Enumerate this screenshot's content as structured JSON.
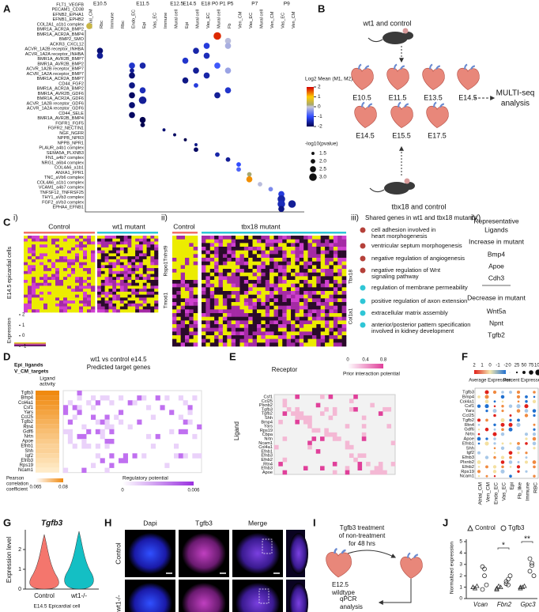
{
  "panel_a": {
    "label": "A",
    "groups": [
      "E10.5",
      "E11.5",
      "E12.5",
      "E14.5",
      "E18 P0 P1 P5",
      "P7",
      "P9"
    ],
    "columns": [
      "Atrial_CM",
      "Rbc",
      "Immune",
      "Rbc",
      "Endo_EC",
      "Epi",
      "Vas_EC",
      "Immune",
      "Mural cell",
      "Epi",
      "Mural cell",
      "Vas_EC",
      "Mural cell",
      "Fb",
      "Ven_CM",
      "Vas_EC",
      "Mural cell",
      "Ven_CM",
      "Vas_EC",
      "Ven_CM"
    ],
    "rows": [
      "FLT1_VEGFB",
      "PECAM1_CD38",
      "EFNB2_EPHA1",
      "EFNB1_EPHB2",
      "COL2A1_a1b1 complex",
      "BMR1A_ACR2A_BMP2",
      "BMR1A_ACR2A_BMP4",
      "BMP2_SMO",
      "ACKR3_CXCL12",
      "ACVR_1A2B receptor_INHBA",
      "ACVR_1A2A receptor_INHBA",
      "BMR1A_AVR2B_BMP7",
      "BMR1A_AVR2B_BMP2",
      "ACVR_1A2B receptor_BMP7",
      "ACVR_1A2A receptor_BMP7",
      "BMR1A_ACR2A_BMP7",
      "CD44_FGF2",
      "BMR1A_ACR2A_BMP2",
      "BMR1A_AVR2B_GDF6",
      "BMR1A_ACR2A_GDF6",
      "ACVR_1A2B receptor_GDF6",
      "ACVR_1A2A receptor_GDF6",
      "CD44_SELE",
      "BMR1A_AVR2B_BMP4",
      "FGFR1_FGF5",
      "FGFR2_NECTIN1",
      "NGF_NGFR",
      "NPPB_NPR3",
      "NPPB_NPR1",
      "PLAUR_a4b1 complex",
      "SEMA5A_PLXNB3",
      "FN1_a4b7 complex",
      "NRG1_a6b4 complex",
      "COL4A6_a1b1",
      "ANXA1_FPR1",
      "TNC_aVb6 complex",
      "COL4A6_a1b1 complex",
      "VCAM1_a4b7 complex",
      "TNFSF12_TNFRSF25",
      "THY1_aVb3 complex",
      "FGF2_aVb3 complex",
      "EPHA4_EFNB1"
    ],
    "dots": [
      [
        4,
        0,
        0.5,
        2.5
      ],
      [
        9,
        1,
        -1.8,
        2.5
      ],
      [
        10,
        1,
        -1.6,
        2.5
      ],
      [
        12,
        4,
        -1.3,
        2.5
      ],
      [
        12,
        5,
        -1.5,
        2.5
      ],
      [
        13,
        4,
        -1.6,
        2
      ],
      [
        14,
        4,
        -1.8,
        2.5
      ],
      [
        16,
        4,
        -1.7,
        2.5
      ],
      [
        17,
        5,
        -1.4,
        2.5
      ],
      [
        18,
        4,
        -1.9,
        2.5
      ],
      [
        19,
        5,
        -1.6,
        3
      ],
      [
        20,
        4,
        -1.8,
        2.5
      ],
      [
        22,
        4,
        -1.9,
        2.5
      ],
      [
        23,
        5,
        -2,
        2.5
      ],
      [
        24,
        5,
        -2,
        2
      ],
      [
        6,
        12,
        1.8,
        3
      ],
      [
        7,
        13,
        -0.1,
        2.5
      ],
      [
        8,
        11,
        -1.2,
        2.5
      ],
      [
        8,
        13,
        -0.2,
        2.5
      ],
      [
        9,
        10,
        -1.5,
        2.5
      ],
      [
        10,
        11,
        -1.4,
        2.5
      ],
      [
        11,
        9,
        -1.3,
        2.5
      ],
      [
        12,
        12,
        -0.9,
        2.5
      ],
      [
        13,
        10,
        -1.6,
        2.5
      ],
      [
        13,
        13,
        -0.3,
        2.5
      ],
      [
        14,
        11,
        -1.5,
        2.5
      ],
      [
        15,
        9,
        -1.7,
        2.5
      ],
      [
        16,
        10,
        -1.2,
        2
      ],
      [
        17,
        13,
        -1.3,
        2.5
      ],
      [
        18,
        12,
        -1.6,
        2.5
      ],
      [
        25,
        7,
        -1.8,
        1.5
      ],
      [
        26,
        8,
        -1.9,
        1.5
      ],
      [
        27,
        9,
        -2,
        1.5
      ],
      [
        28,
        10,
        -1.7,
        1.5
      ],
      [
        29,
        10,
        -1.9,
        2
      ],
      [
        30,
        12,
        -1.5,
        2
      ],
      [
        31,
        13,
        -1.6,
        2
      ],
      [
        32,
        14,
        -1,
        2
      ],
      [
        33,
        14,
        -0.8,
        2
      ],
      [
        34,
        15,
        0.2,
        2
      ],
      [
        35,
        15,
        1.3,
        2.5
      ],
      [
        36,
        16,
        -0.1,
        2
      ],
      [
        37,
        17,
        -0.5,
        2
      ],
      [
        38,
        18,
        -1.2,
        2.5
      ],
      [
        39,
        18,
        -1.5,
        3
      ],
      [
        40,
        18,
        -1.4,
        3
      ],
      [
        40,
        19,
        -1.6,
        3
      ],
      [
        41,
        18,
        -1.7,
        2.5
      ]
    ],
    "color_title": "Log2 Mean (M1, M2)",
    "color_ticks": [
      2,
      1,
      0,
      -1,
      -2
    ],
    "size_title": "-log10(pvalue)",
    "size_ticks": [
      1.5,
      {
        "value": 2,
        "label": "2.0"
      },
      2.5,
      {
        "value": 3,
        "label": "3.0"
      }
    ]
  },
  "panel_b": {
    "label": "B",
    "top_label": "wt1 and control",
    "bottom_label": "tbx18 and control",
    "row1": [
      "E10.5",
      "E11.5",
      "E13.5",
      "E14.5"
    ],
    "row2": [
      "E14.5",
      "E15.5",
      "E17.5"
    ],
    "analysis": [
      "MULTI-seq",
      "analysis"
    ]
  },
  "panel_c": {
    "label": "C",
    "i": {
      "label": "i)",
      "groups": [
        "Control",
        "wt1 mutant"
      ],
      "y_label": "E14.5 epicardial cells",
      "legend_title": "Expression",
      "legend_ticks": [
        -1,
        0,
        1,
        2
      ]
    },
    "ii": {
      "label": "ii)",
      "groups": [
        "Control",
        "tbx18 mutant"
      ],
      "genes": [
        "Rspo1Tnfrsf9",
        "Tmod1",
        "Tbx18",
        "Col1a1"
      ]
    },
    "iii": {
      "label": "iii)",
      "title": "Shared genes in wt1 and tbx18 mutants",
      "terms": [
        {
          "text": [
            "cell adhesion involved in",
            "heart morphogenesis"
          ],
          "color": "#b5413a"
        },
        {
          "text": [
            "ventricular septum morphogenesis"
          ],
          "color": "#b5413a"
        },
        {
          "text": [
            "negative regulation of angiogenesis"
          ],
          "color": "#b5413a"
        },
        {
          "text": [
            "negative regulation of Wnt",
            "signaling pathway"
          ],
          "color": "#b5413a"
        },
        {
          "text": [
            "regulation of membrane permeability"
          ],
          "color": "#2fc6d6"
        },
        {
          "text": [
            "positive regulation of axon extension"
          ],
          "color": "#2fc6d6"
        },
        {
          "text": [
            "extracellular matrix assembly"
          ],
          "color": "#2fc6d6"
        },
        {
          "text": [
            "anterior/posterior pattern specification",
            "involved in kidney development"
          ],
          "color": "#2fc6d6"
        }
      ]
    },
    "iv": {
      "label": "iV)",
      "title": [
        "Representative",
        "Ligands"
      ],
      "increase_title": "Increase in mutant",
      "increase": [
        "Bmp4",
        "Apoe",
        "Cdh3"
      ],
      "decrease_title": "Decrease in mutant",
      "decrease": [
        "Wnt5a",
        "Npnt",
        "Tgfb2"
      ]
    }
  },
  "panel_d": {
    "label": "D",
    "titles": [
      "Epi_ligands",
      "V_CM_targets"
    ],
    "comparison": "wt1 vs control  e14.5",
    "targets_title": "Predicted target genes",
    "activity_title": [
      "Ligand",
      "activity"
    ],
    "ligands": [
      "Tgfb3",
      "Bmp4",
      "Col4a1",
      "Csf1",
      "Yars",
      "Ccl25",
      "Tgfb2",
      "Rtn4",
      "Gdf6",
      "Nrtn",
      "Apoe",
      "Efnb1",
      "Shh",
      "Igf2",
      "Efnb3",
      "Rps19",
      "Ncam1"
    ],
    "activity": [
      0.08,
      0.079,
      0.078,
      0.077,
      0.076,
      0.075,
      0.074,
      0.073,
      0.072,
      0.071,
      0.07,
      0.069,
      0.069,
      0.068,
      0.067,
      0.066,
      0.065
    ],
    "pearson_title": [
      "Pearson",
      "correlation",
      "coefficient"
    ],
    "pearson_ticks": [
      0.065,
      0.08
    ],
    "reg_title": "Regulatory potential",
    "reg_ticks": [
      0,
      0.006
    ]
  },
  "panel_e": {
    "label": "E",
    "receptor_title": "Receptor",
    "ligand_title": "Ligand",
    "legend_title": "Prior interaction potential",
    "legend_ticks": [
      0,
      0.4,
      0.8
    ],
    "ligands": [
      "Csf1",
      "Ccl25",
      "Plxnb2",
      "Tgfb3",
      "Tgfb2",
      "Shh",
      "Bmp4",
      "Yars",
      "Rps19",
      "Cbpa",
      "Nrtn",
      "Ncam1",
      "Col4a1",
      "Efnb1",
      "Efnb3",
      "Efnb2",
      "Rtn4",
      "Efnb3",
      "Apoe"
    ]
  },
  "panel_f": {
    "label": "F",
    "avg_title": "Average Expression",
    "avg_ticks": [
      2,
      1,
      0,
      -1,
      -2
    ],
    "pct_title": "Percent Expressed",
    "pct_ticks": [
      0,
      25,
      50,
      75,
      100
    ],
    "genes": [
      "Tgfb3",
      "Bmp4",
      "Col4a1",
      "Csf1",
      "Yars",
      "Ccl25",
      "Tgfb2",
      "Rtn4",
      "Gdf6",
      "Nrtn",
      "Apoe",
      "Efnb1",
      "Shh",
      "Igf2",
      "Efnb3",
      "Plxnb2",
      "Efnb2",
      "Rps19",
      "Ncam1"
    ],
    "cell_types": [
      "Atrial_CM",
      "Ven_CM",
      "Endo_EC",
      "Vas_EC",
      "Epi",
      "Fb_like",
      "Immune",
      "RBC"
    ]
  },
  "panel_g": {
    "label": "G",
    "title": "Tgfb3",
    "y_label": "Expression level",
    "categories": [
      "Control",
      "wt1-/-"
    ],
    "colors": [
      "#f4766d",
      "#14bfc4"
    ],
    "ylim": [
      0,
      3
    ],
    "yticks": [
      0,
      1,
      2
    ],
    "caption": "E14.5 Epicardial cell"
  },
  "panel_h": {
    "label": "H",
    "stains": [
      "Dapi",
      "Tgfb3",
      "Merge"
    ],
    "conditions": [
      "Control",
      "wt1-/-"
    ]
  },
  "panel_i": {
    "label": "I",
    "treatment": [
      "Tgfb3 treatment",
      "of non-treatment",
      "for 48 hrs"
    ],
    "embryo": [
      "E12.5",
      "wildtype"
    ],
    "assay": [
      "qPCR",
      "analysis"
    ]
  },
  "panel_j": {
    "label": "J",
    "type": "scatter",
    "y_label": "Normalized expression",
    "categories": [
      "Vcan",
      "Fbn2",
      "Gpc3"
    ],
    "series": [
      {
        "name": "Control",
        "values": [
          [
            1.0,
            0.9,
            1.1,
            1.0
          ],
          [
            0.9,
            1.1,
            1.0,
            0.8
          ],
          [
            0.9,
            1.0,
            1.1,
            1.0
          ]
        ]
      },
      {
        "name": "Tgfb3",
        "values": [
          [
            2.8,
            2.6,
            1.2,
            0.8,
            2.0
          ],
          [
            1.5,
            1.7,
            2.0,
            1.3,
            1.2
          ],
          [
            3.5,
            2.9,
            2.0,
            2.4,
            3.1
          ]
        ]
      }
    ],
    "ylim": [
      0,
      5
    ],
    "yticks": [
      0,
      1,
      2,
      3,
      4,
      5
    ],
    "significance": [
      "*",
      "**"
    ]
  }
}
